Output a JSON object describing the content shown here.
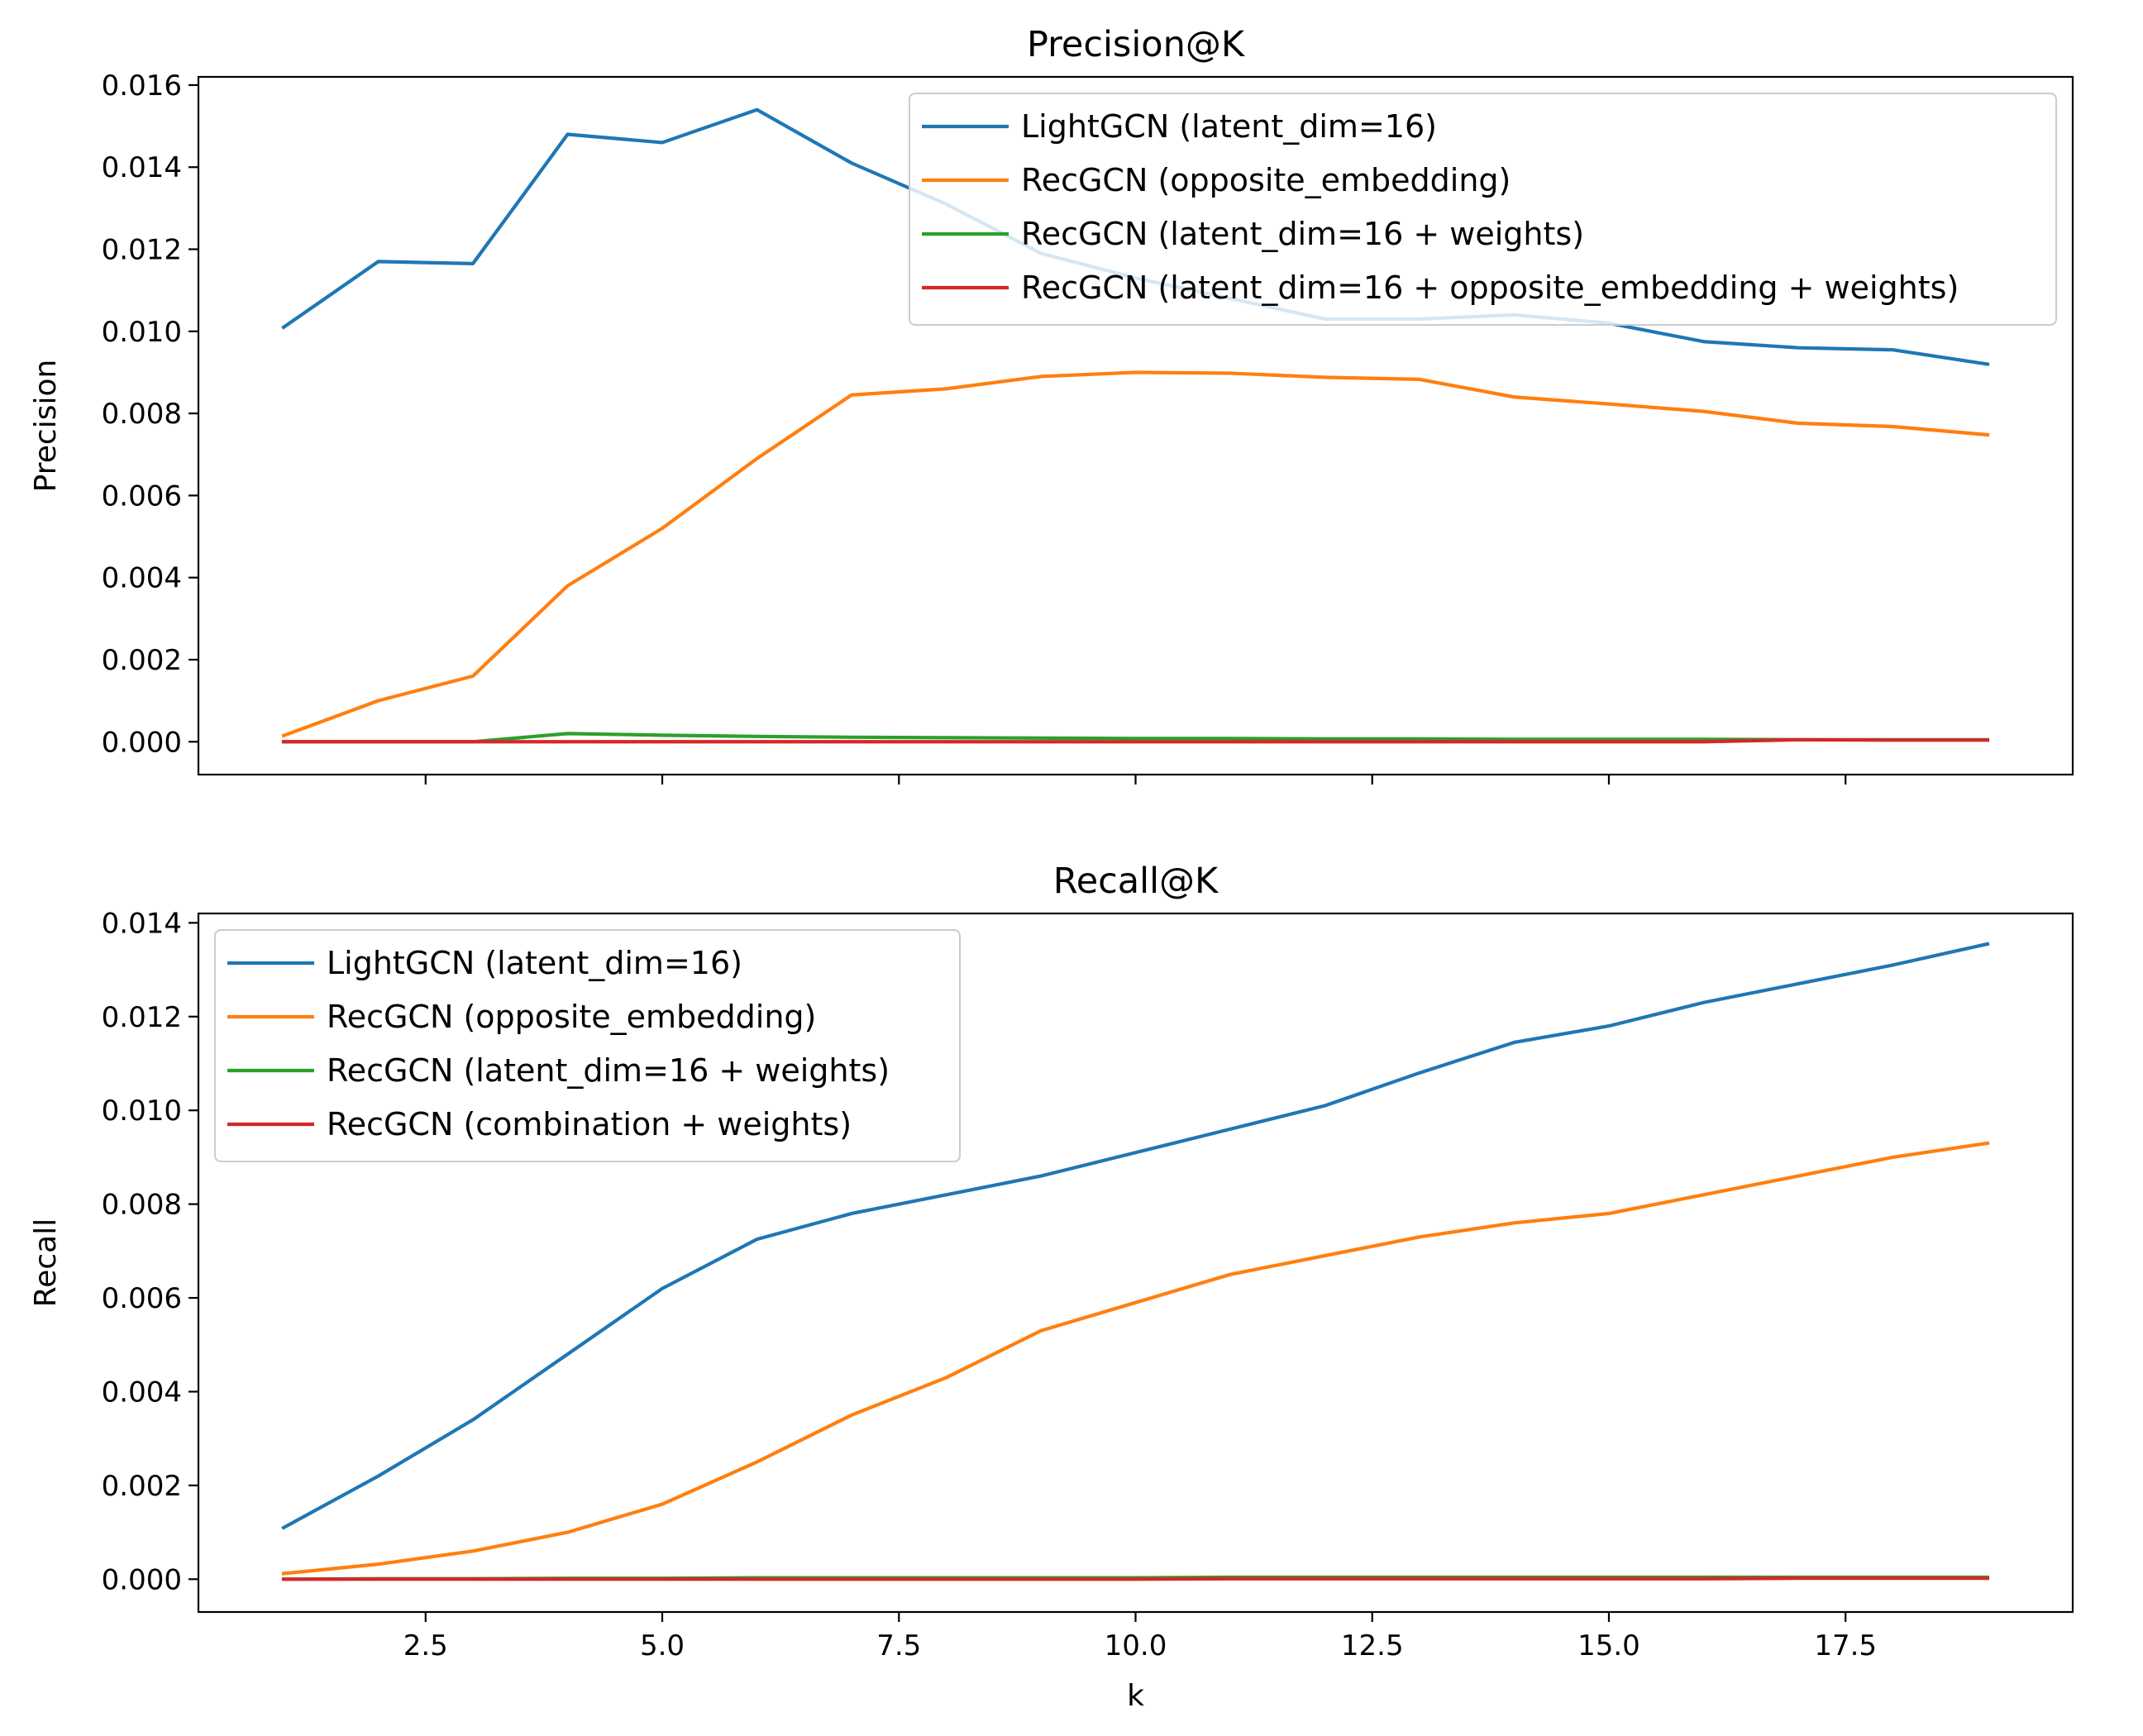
{
  "chart_data": [
    {
      "type": "line",
      "title": "Precision@K",
      "xlabel": "",
      "ylabel": "Precision",
      "xlim": [
        0.1,
        19.9
      ],
      "ylim": [
        -0.0008,
        0.0162
      ],
      "xticks": [
        2.5,
        5.0,
        7.5,
        10.0,
        12.5,
        15.0,
        17.5
      ],
      "xtick_labels": [],
      "yticks": [
        0.0,
        0.002,
        0.004,
        0.006,
        0.008,
        0.01,
        0.012,
        0.014,
        0.016
      ],
      "ytick_labels": [
        "0.000",
        "0.002",
        "0.004",
        "0.006",
        "0.008",
        "0.010",
        "0.012",
        "0.014",
        "0.016"
      ],
      "grid": false,
      "legend_position": "top-right",
      "x": [
        1,
        2,
        3,
        4,
        5,
        6,
        7,
        8,
        9,
        10,
        11,
        12,
        13,
        14,
        15,
        16,
        17,
        18,
        19
      ],
      "series": [
        {
          "name": "LightGCN (latent_dim=16)",
          "color": "#1f77b4",
          "values": [
            0.0101,
            0.0117,
            0.01165,
            0.0148,
            0.0146,
            0.0154,
            0.0141,
            0.0131,
            0.0119,
            0.0113,
            0.0108,
            0.0103,
            0.0103,
            0.0104,
            0.0102,
            0.00975,
            0.0096,
            0.00955,
            0.0092
          ]
        },
        {
          "name": "RecGCN (opposite_embedding)",
          "color": "#ff7f0e",
          "values": [
            0.00015,
            0.001,
            0.0016,
            0.0038,
            0.0052,
            0.0069,
            0.00845,
            0.0086,
            0.0089,
            0.009,
            0.00898,
            0.00888,
            0.00883,
            0.0084,
            0.00823,
            0.00805,
            0.00776,
            0.00768,
            0.00748
          ]
        },
        {
          "name": "RecGCN (latent_dim=16 + weights)",
          "color": "#2ca02c",
          "values": [
            0.0,
            0.0,
            0.0,
            0.0002,
            0.00016,
            0.00013,
            0.00011,
            0.0001,
            9e-05,
            8e-05,
            8e-05,
            7e-05,
            7e-05,
            6e-05,
            6e-05,
            6e-05,
            5e-05,
            5e-05,
            5e-05
          ]
        },
        {
          "name": "RecGCN (latent_dim=16 + opposite_embedding + weights)",
          "color": "#d62728",
          "values": [
            0.0,
            0.0,
            0.0,
            0.0,
            0.0,
            0.0,
            0.0,
            0.0,
            0.0,
            0.0,
            0.0,
            0.0,
            0.0,
            0.0,
            0.0,
            0.0,
            5e-05,
            4e-05,
            4e-05
          ]
        }
      ]
    },
    {
      "type": "line",
      "title": "Recall@K",
      "xlabel": "k",
      "ylabel": "Recall",
      "xlim": [
        0.1,
        19.9
      ],
      "ylim": [
        -0.0007,
        0.0142
      ],
      "xticks": [
        2.5,
        5.0,
        7.5,
        10.0,
        12.5,
        15.0,
        17.5
      ],
      "xtick_labels": [
        "2.5",
        "5.0",
        "7.5",
        "10.0",
        "12.5",
        "15.0",
        "17.5"
      ],
      "yticks": [
        0.0,
        0.002,
        0.004,
        0.006,
        0.008,
        0.01,
        0.012,
        0.014
      ],
      "ytick_labels": [
        "0.000",
        "0.002",
        "0.004",
        "0.006",
        "0.008",
        "0.010",
        "0.012",
        "0.014"
      ],
      "grid": false,
      "legend_position": "top-left",
      "x": [
        1,
        2,
        3,
        4,
        5,
        6,
        7,
        8,
        9,
        10,
        11,
        12,
        13,
        14,
        15,
        16,
        17,
        18,
        19
      ],
      "series": [
        {
          "name": "LightGCN (latent_dim=16)",
          "color": "#1f77b4",
          "values": [
            0.0011,
            0.0022,
            0.0034,
            0.0048,
            0.0062,
            0.00725,
            0.0078,
            0.0082,
            0.0086,
            0.0091,
            0.0096,
            0.0101,
            0.0108,
            0.01145,
            0.0118,
            0.0123,
            0.0127,
            0.0131,
            0.01355
          ]
        },
        {
          "name": "RecGCN (opposite_embedding)",
          "color": "#ff7f0e",
          "values": [
            0.00012,
            0.00032,
            0.0006,
            0.001,
            0.0016,
            0.0025,
            0.0035,
            0.0043,
            0.0053,
            0.0059,
            0.0065,
            0.0069,
            0.0073,
            0.0076,
            0.0078,
            0.0082,
            0.0086,
            0.009,
            0.0093
          ]
        },
        {
          "name": "RecGCN (latent_dim=16 + weights)",
          "color": "#2ca02c",
          "values": [
            0.0,
            1e-05,
            1e-05,
            2e-05,
            2e-05,
            3e-05,
            3e-05,
            3e-05,
            3e-05,
            3e-05,
            4e-05,
            4e-05,
            4e-05,
            4e-05,
            4e-05,
            4e-05,
            4e-05,
            4e-05,
            4e-05
          ]
        },
        {
          "name": "RecGCN (combination + weights)",
          "color": "#d62728",
          "values": [
            0.0,
            0.0,
            0.0,
            0.0,
            0.0,
            0.0,
            0.0,
            0.0,
            0.0,
            0.0,
            1e-05,
            1e-05,
            1e-05,
            1e-05,
            1e-05,
            1e-05,
            2e-05,
            2e-05,
            2e-05
          ]
        }
      ]
    }
  ]
}
